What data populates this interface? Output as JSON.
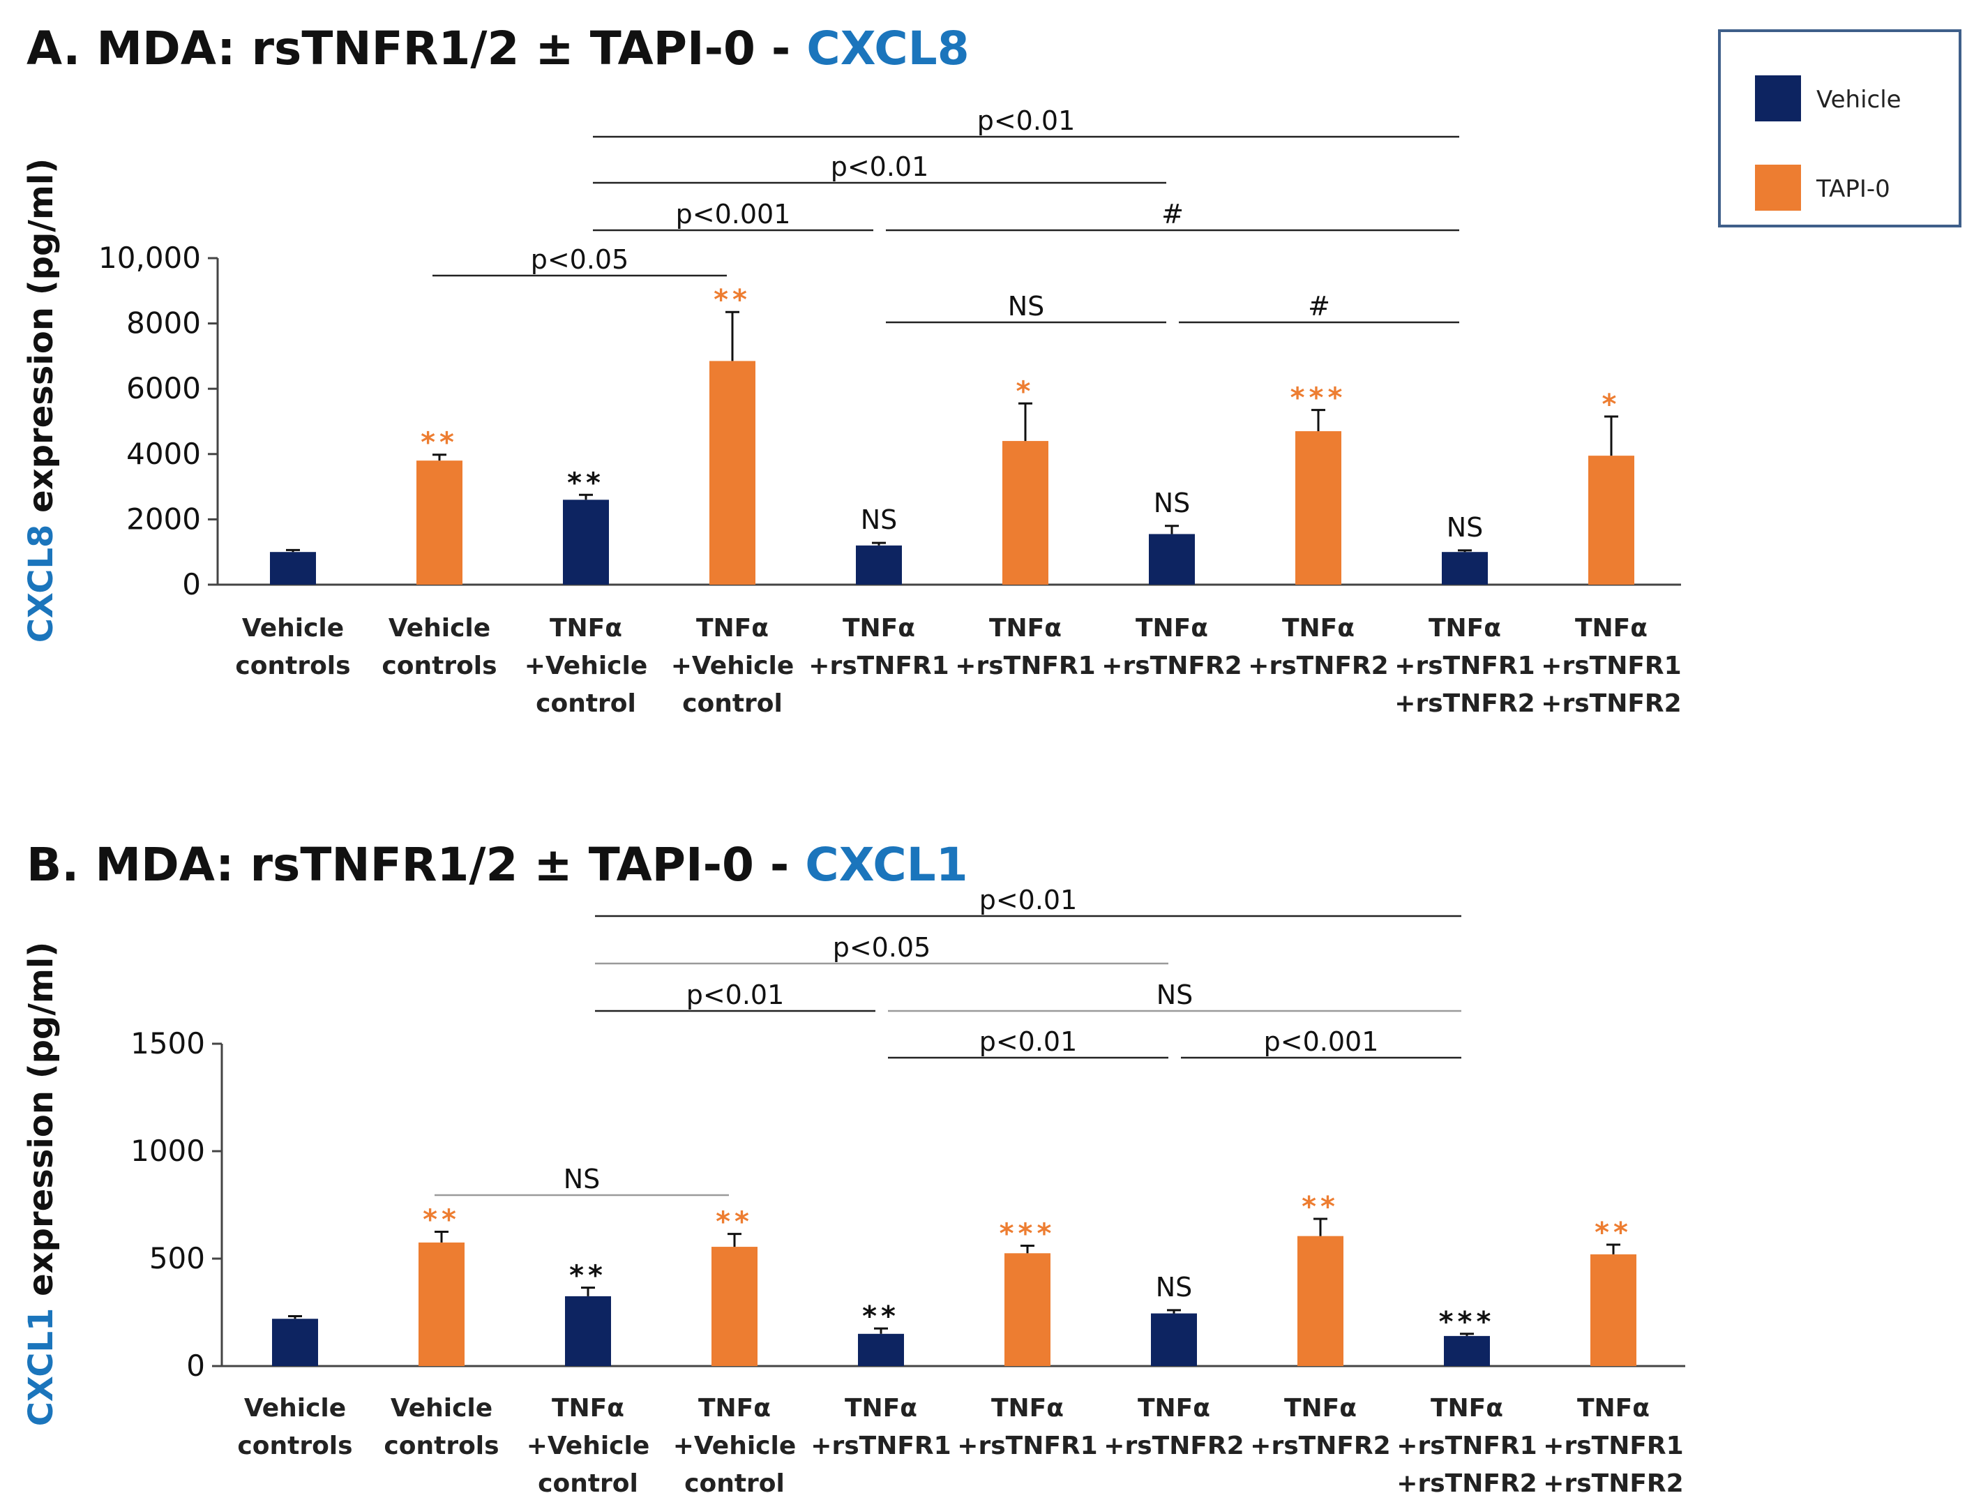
{
  "colors": {
    "vehicle": "#0d2461",
    "tapi": "#ed7d31",
    "accent": "#1b75bc",
    "text": "#111111"
  },
  "legend": {
    "items": [
      {
        "label": "Vehicle",
        "color": "#0d2461"
      },
      {
        "label": "TAPI-0",
        "color": "#ed7d31"
      }
    ]
  },
  "chart_data": [
    {
      "type": "bar",
      "title_prefix": "A.   MDA: rsTNFR1/2 ± TAPI-0 - ",
      "title_gene": "CXCL8",
      "ylabel_gene": "CXCL8",
      "ylabel_rest": " expression (pg/ml)",
      "ylim": [
        0,
        10000
      ],
      "yticks": [
        0,
        2000,
        4000,
        6000,
        8000,
        10000
      ],
      "ytick_labels": [
        "0",
        "2000",
        "4000",
        "6000",
        "8000",
        "10,000"
      ],
      "categories": [
        [
          "Vehicle",
          "controls"
        ],
        [
          "Vehicle",
          "controls"
        ],
        [
          "TNFα",
          "+Vehicle",
          "control"
        ],
        [
          "TNFα",
          "+Vehicle",
          "control"
        ],
        [
          "TNFα",
          "+rsTNFR1"
        ],
        [
          "TNFα",
          "+rsTNFR1"
        ],
        [
          "TNFα",
          "+rsTNFR2"
        ],
        [
          "TNFα",
          "+rsTNFR2"
        ],
        [
          "TNFα",
          "+rsTNFR1",
          "+rsTNFR2"
        ],
        [
          "TNFα",
          "+rsTNFR1",
          "+rsTNFR2"
        ]
      ],
      "bars": [
        {
          "value": 1000,
          "error": 60,
          "treatment": "vehicle",
          "sig": ""
        },
        {
          "value": 3800,
          "error": 180,
          "treatment": "tapi",
          "sig": "**"
        },
        {
          "value": 2600,
          "error": 150,
          "treatment": "vehicle",
          "sig": "**"
        },
        {
          "value": 6850,
          "error": 1500,
          "treatment": "tapi",
          "sig": "**"
        },
        {
          "value": 1200,
          "error": 80,
          "treatment": "vehicle",
          "sig": "NS"
        },
        {
          "value": 4400,
          "error": 1150,
          "treatment": "tapi",
          "sig": "*"
        },
        {
          "value": 1550,
          "error": 250,
          "treatment": "vehicle",
          "sig": "NS"
        },
        {
          "value": 4700,
          "error": 650,
          "treatment": "tapi",
          "sig": "***"
        },
        {
          "value": 1000,
          "error": 50,
          "treatment": "vehicle",
          "sig": "NS"
        },
        {
          "value": 3950,
          "error": 1200,
          "treatment": "tapi",
          "sig": "*"
        }
      ],
      "brackets": [
        {
          "from": 2,
          "to": 8,
          "tier": 4,
          "label": "p<0.01",
          "italic_p": true
        },
        {
          "from": 2,
          "to": 6,
          "tier": 3,
          "label": "p<0.01",
          "italic_p": true
        },
        {
          "from": 2,
          "to": 4,
          "tier": 2,
          "label": "p<0.001",
          "italic_p": true
        },
        {
          "from": 4,
          "to": 8,
          "tier": 2,
          "label": "#",
          "italic_p": false
        },
        {
          "from": 1,
          "to": 3,
          "tier": 1,
          "label": "p<0.05",
          "italic_p": true
        },
        {
          "from": 4,
          "to": 6,
          "tier": 0,
          "label": "NS",
          "italic_p": false
        },
        {
          "from": 6,
          "to": 8,
          "tier": 0,
          "label": "#",
          "italic_p": false
        }
      ]
    },
    {
      "type": "bar",
      "title_prefix": "B.   MDA: rsTNFR1/2 ± TAPI-0  - ",
      "title_gene": "CXCL1",
      "ylabel_gene": "CXCL1",
      "ylabel_rest": " expression (pg/ml)",
      "ylim": [
        0,
        1500
      ],
      "yticks": [
        0,
        500,
        1000,
        1500
      ],
      "ytick_labels": [
        "0",
        "500",
        "1000",
        "1500"
      ],
      "categories": [
        [
          "Vehicle",
          "controls"
        ],
        [
          "Vehicle",
          "controls"
        ],
        [
          "TNFα",
          "+Vehicle",
          "control"
        ],
        [
          "TNFα",
          "+Vehicle",
          "control"
        ],
        [
          "TNFα",
          "+rsTNFR1"
        ],
        [
          "TNFα",
          "+rsTNFR1"
        ],
        [
          "TNFα",
          "+rsTNFR2"
        ],
        [
          "TNFα",
          "+rsTNFR2"
        ],
        [
          "TNFα",
          "+rsTNFR1",
          "+rsTNFR2"
        ],
        [
          "TNFα",
          "+rsTNFR1",
          "+rsTNFR2"
        ]
      ],
      "bars": [
        {
          "value": 220,
          "error": 12,
          "treatment": "vehicle",
          "sig": ""
        },
        {
          "value": 575,
          "error": 50,
          "treatment": "tapi",
          "sig": "**"
        },
        {
          "value": 325,
          "error": 40,
          "treatment": "vehicle",
          "sig": "**"
        },
        {
          "value": 555,
          "error": 60,
          "treatment": "tapi",
          "sig": "**"
        },
        {
          "value": 150,
          "error": 25,
          "treatment": "vehicle",
          "sig": "**"
        },
        {
          "value": 525,
          "error": 35,
          "treatment": "tapi",
          "sig": "***"
        },
        {
          "value": 245,
          "error": 15,
          "treatment": "vehicle",
          "sig": "NS"
        },
        {
          "value": 605,
          "error": 80,
          "treatment": "tapi",
          "sig": "**"
        },
        {
          "value": 140,
          "error": 10,
          "treatment": "vehicle",
          "sig": "***"
        },
        {
          "value": 520,
          "error": 45,
          "treatment": "tapi",
          "sig": "**"
        }
      ],
      "brackets": [
        {
          "from": 2,
          "to": 8,
          "tier": 5,
          "label": "p<0.01",
          "italic_p": true
        },
        {
          "from": 2,
          "to": 6,
          "tier": 4,
          "label": "p<0.05",
          "italic_p": true
        },
        {
          "from": 2,
          "to": 4,
          "tier": 3,
          "label": "p<0.01",
          "italic_p": true
        },
        {
          "from": 4,
          "to": 8,
          "tier": 3,
          "label": "NS",
          "italic_p": false
        },
        {
          "from": 4,
          "to": 6,
          "tier": 2,
          "label": "p<0.01",
          "italic_p": true
        },
        {
          "from": 6,
          "to": 8,
          "tier": 2,
          "label": "p<0.001",
          "italic_p": true
        },
        {
          "from": 1,
          "to": 3,
          "tier": 0,
          "label": "NS",
          "italic_p": false
        }
      ]
    }
  ]
}
